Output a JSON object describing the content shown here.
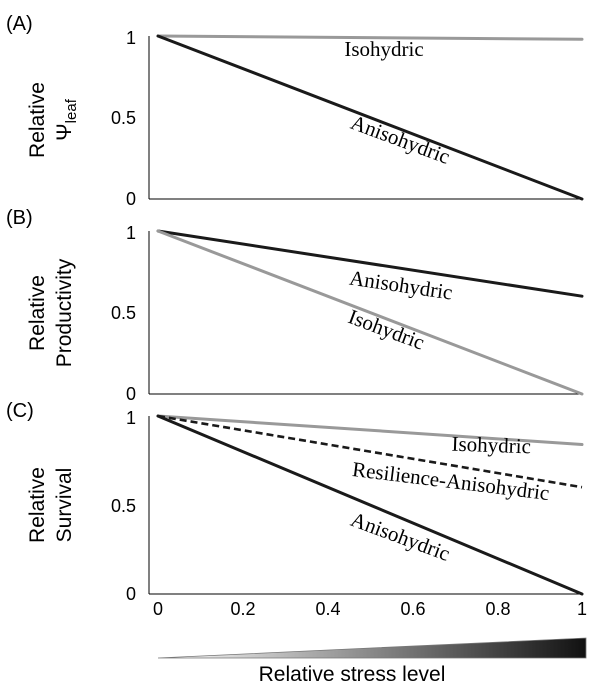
{
  "colors": {
    "black_line": "#1a1a1a",
    "gray_line": "#999999",
    "axis": "#000000",
    "gradient_start": "#ffffff",
    "gradient_end": "#111111"
  },
  "chart_data": [
    {
      "type": "line",
      "panel": "(A)",
      "ylabel": "Relative",
      "ylabel_symbol": "Ψ",
      "ylabel_sub": "leaf",
      "xlim": [
        0,
        1
      ],
      "ylim": [
        0,
        1
      ],
      "yticks": [
        "0",
        "0.5",
        "1"
      ],
      "series": [
        {
          "name": "Isohydric",
          "x": [
            0,
            1
          ],
          "y": [
            1,
            0.98
          ],
          "color": "#999999",
          "dash": false
        },
        {
          "name": "Anisohydric",
          "x": [
            0,
            1
          ],
          "y": [
            1,
            0
          ],
          "color": "#1a1a1a",
          "dash": false
        }
      ]
    },
    {
      "type": "line",
      "panel": "(B)",
      "ylabel_line1": "Relative",
      "ylabel_line2": "Productivity",
      "xlim": [
        0,
        1
      ],
      "ylim": [
        0,
        1
      ],
      "yticks": [
        "0",
        "0.5",
        "1"
      ],
      "series": [
        {
          "name": "Anisohydric",
          "x": [
            0,
            1
          ],
          "y": [
            1,
            0.6
          ],
          "color": "#1a1a1a",
          "dash": false
        },
        {
          "name": "Isohydric",
          "x": [
            0,
            1
          ],
          "y": [
            1,
            0
          ],
          "color": "#999999",
          "dash": false
        }
      ]
    },
    {
      "type": "line",
      "panel": "(C)",
      "ylabel_line1": "Relative",
      "ylabel_line2": "Survival",
      "xlim": [
        0,
        1
      ],
      "ylim": [
        0,
        1
      ],
      "yticks": [
        "0",
        "0.5",
        "1"
      ],
      "xticks": [
        "0",
        "0.2",
        "0.4",
        "0.6",
        "0.8",
        "1"
      ],
      "xlabel": "Relative stress level",
      "series": [
        {
          "name": "Isohydric",
          "x": [
            0,
            1
          ],
          "y": [
            1,
            0.84
          ],
          "color": "#999999",
          "dash": false
        },
        {
          "name": "Resilience-Anisohydric",
          "x": [
            0,
            1
          ],
          "y": [
            1,
            0.6
          ],
          "color": "#1a1a1a",
          "dash": true
        },
        {
          "name": "Anisohydric",
          "x": [
            0,
            1
          ],
          "y": [
            1,
            0
          ],
          "color": "#1a1a1a",
          "dash": false
        }
      ]
    }
  ]
}
